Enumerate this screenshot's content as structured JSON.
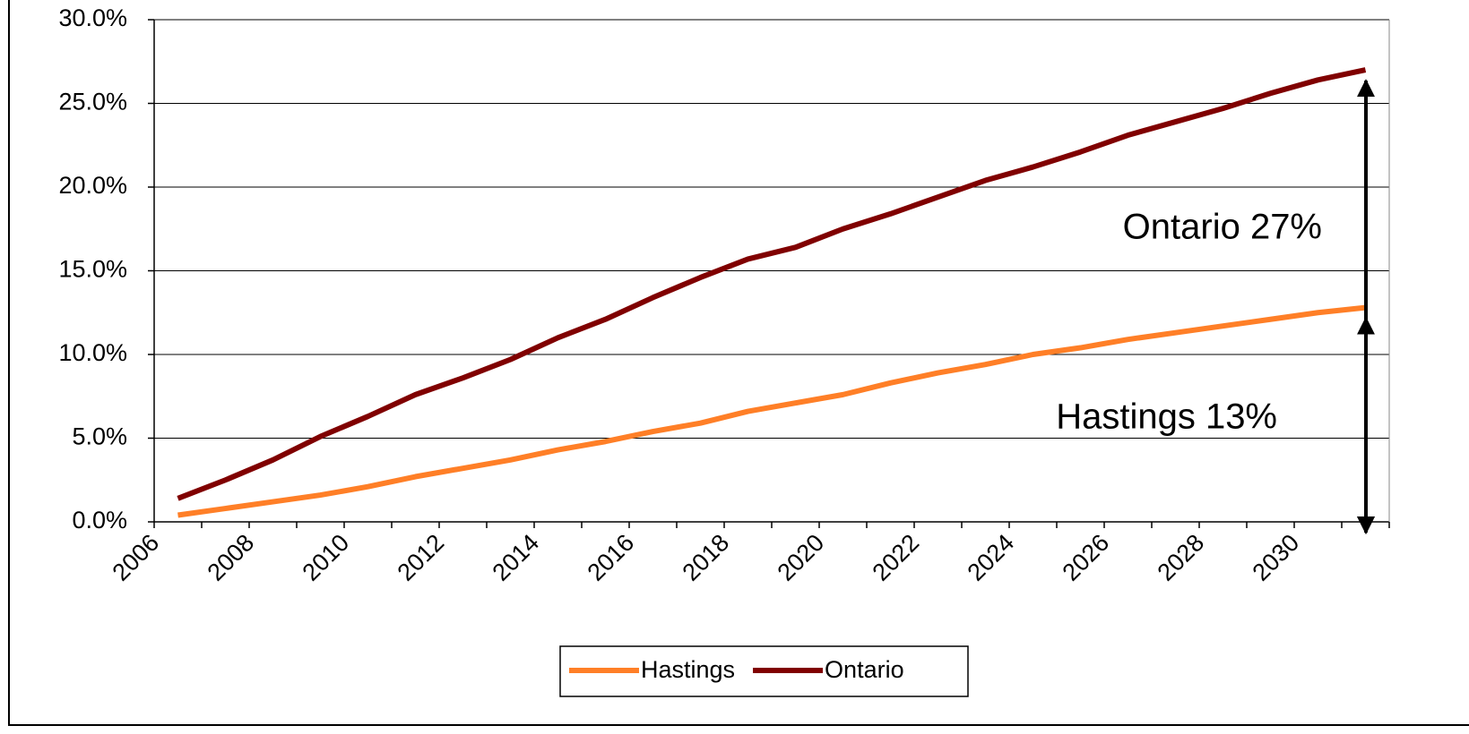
{
  "chart_data": {
    "type": "line",
    "categories": [
      "2006",
      null,
      "2008",
      null,
      "2010",
      null,
      "2012",
      null,
      "2014",
      null,
      "2016",
      null,
      "2018",
      null,
      "2020",
      null,
      "2022",
      null,
      "2024",
      null,
      "2026",
      null,
      "2028",
      null,
      "2030",
      null
    ],
    "series": [
      {
        "name": "Hastings",
        "color": "#ff7f27",
        "values": [
          0.4,
          0.8,
          1.2,
          1.6,
          2.1,
          2.7,
          3.2,
          3.7,
          4.3,
          4.8,
          5.4,
          5.9,
          6.6,
          7.1,
          7.6,
          8.3,
          8.9,
          9.4,
          10.0,
          10.4,
          10.9,
          11.3,
          11.7,
          12.1,
          12.5,
          12.8
        ]
      },
      {
        "name": "Ontario",
        "color": "#800000",
        "values": [
          1.4,
          2.5,
          3.7,
          5.1,
          6.3,
          7.6,
          8.6,
          9.7,
          11.0,
          12.1,
          13.4,
          14.6,
          15.7,
          16.4,
          17.5,
          18.4,
          19.4,
          20.4,
          21.2,
          22.1,
          23.1,
          23.9,
          24.7,
          25.6,
          26.4,
          27.0
        ]
      }
    ],
    "ylim": [
      0,
      30
    ],
    "yticks": [
      {
        "value": 0,
        "label": "0.0%"
      },
      {
        "value": 5,
        "label": "5.0%"
      },
      {
        "value": 10,
        "label": "10.0%"
      },
      {
        "value": 15,
        "label": "15.0%"
      },
      {
        "value": 20,
        "label": "20.0%"
      },
      {
        "value": 25,
        "label": "25.0%"
      },
      {
        "value": 30,
        "label": "30.0%"
      }
    ],
    "grid": true,
    "legend": "bottom",
    "annotations": [
      "Ontario 27%",
      "Hastings 13%"
    ]
  }
}
